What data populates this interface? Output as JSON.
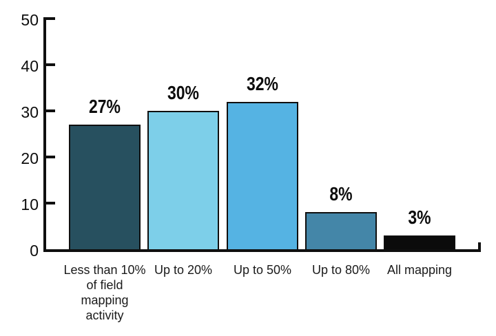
{
  "page": {
    "background_color": "#ffffff"
  },
  "chart_data": {
    "type": "bar",
    "title": "",
    "xlabel": "",
    "ylabel": "",
    "categories": [
      "Less than 10%\nof field\nmapping\nactivity",
      "Up to 20%",
      "Up to 50%",
      "Up to 80%",
      "All mapping"
    ],
    "values": [
      27,
      30,
      32,
      8,
      3
    ],
    "value_labels": [
      "27%",
      "30%",
      "32%",
      "8%",
      "3%"
    ],
    "bar_colors": [
      "#27505f",
      "#7dcfe9",
      "#55b3e3",
      "#4486a8",
      "#0b0b0b"
    ],
    "bar_border_color": "#0f0f0f",
    "axis_color": "#0f0f0f",
    "text_color": "#0d0d0d",
    "ylim": [
      0,
      50
    ],
    "yticks": [
      0,
      10,
      20,
      30,
      40,
      50
    ],
    "grid": false,
    "legend_position": "none"
  }
}
